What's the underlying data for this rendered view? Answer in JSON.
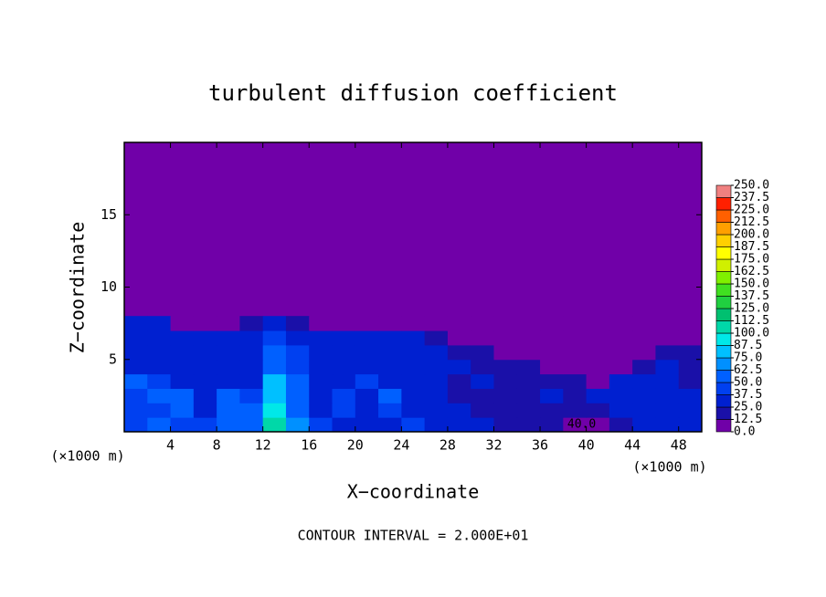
{
  "chart_data": {
    "type": "contour",
    "title": "turbulent diffusion coefficient",
    "xlabel": "X−coordinate",
    "ylabel": "Z−coordinate",
    "x_unit": "(×1000 m)",
    "footer": "CONTOUR INTERVAL = 2.000E+01",
    "xlim": [
      0,
      50
    ],
    "ylim": [
      0,
      20
    ],
    "xticks": [
      4,
      8,
      12,
      16,
      20,
      24,
      28,
      32,
      36,
      40,
      44,
      48
    ],
    "yticks": [
      5,
      10,
      15
    ],
    "annotations": [
      {
        "text": "40.0",
        "x": 39.6,
        "y": 0.5
      }
    ],
    "x": [
      1,
      3,
      5,
      7,
      9,
      11,
      13,
      15,
      17,
      19,
      21,
      23,
      25,
      27,
      29,
      31,
      33,
      35,
      37,
      39,
      41,
      43,
      45,
      47,
      49
    ],
    "y": [
      0.5,
      1.5,
      2.5,
      3.5,
      4.5,
      5.5,
      6.5,
      7.5
    ],
    "z": [
      [
        45,
        50,
        45,
        40,
        50,
        60,
        110,
        70,
        40,
        35,
        30,
        35,
        40,
        30,
        25,
        25,
        20,
        15,
        15,
        12,
        12,
        20,
        25,
        30,
        30
      ],
      [
        40,
        45,
        55,
        35,
        55,
        60,
        95,
        60,
        35,
        40,
        30,
        45,
        35,
        30,
        25,
        20,
        20,
        15,
        20,
        15,
        20,
        25,
        30,
        30,
        30
      ],
      [
        45,
        55,
        50,
        30,
        50,
        45,
        85,
        55,
        30,
        45,
        35,
        50,
        30,
        30,
        20,
        20,
        15,
        20,
        25,
        20,
        25,
        30,
        30,
        25,
        25
      ],
      [
        50,
        40,
        35,
        35,
        30,
        30,
        75,
        50,
        35,
        35,
        40,
        35,
        30,
        25,
        20,
        25,
        15,
        20,
        20,
        15,
        10,
        25,
        30,
        25,
        20
      ],
      [
        35,
        30,
        30,
        35,
        30,
        30,
        60,
        45,
        35,
        30,
        35,
        30,
        25,
        30,
        25,
        20,
        15,
        15,
        10,
        5,
        5,
        5,
        20,
        25,
        15
      ],
      [
        30,
        30,
        35,
        30,
        30,
        35,
        55,
        40,
        30,
        30,
        30,
        25,
        30,
        25,
        20,
        15,
        10,
        5,
        3,
        0,
        0,
        0,
        5,
        15,
        15
      ],
      [
        30,
        30,
        30,
        25,
        30,
        30,
        45,
        35,
        35,
        30,
        25,
        30,
        30,
        20,
        10,
        5,
        3,
        0,
        0,
        0,
        0,
        0,
        0,
        5,
        10
      ],
      [
        25,
        25,
        10,
        5,
        10,
        15,
        35,
        20,
        10,
        5,
        5,
        5,
        5,
        5,
        0,
        0,
        0,
        0,
        0,
        0,
        0,
        0,
        0,
        0,
        0
      ]
    ],
    "colorbar": {
      "levels": [
        {
          "value": 0,
          "label": "0.0"
        },
        12.5,
        {
          "value": 25,
          "label": "25.0"
        },
        37.5,
        {
          "value": 50,
          "label": "50.0"
        },
        62.5,
        {
          "value": 75,
          "label": "75.0"
        },
        87.5,
        {
          "value": 100,
          "label": "100.0"
        },
        112.5,
        {
          "value": 125,
          "label": "125.0"
        },
        137.5,
        {
          "value": 150,
          "label": "150.0"
        },
        162.5,
        {
          "value": 175,
          "label": "175.0"
        },
        187.5,
        {
          "value": 200,
          "label": "200.0"
        },
        212.5,
        {
          "value": 225,
          "label": "225.0"
        },
        237.5,
        {
          "value": 250,
          "label": "250.0"
        }
      ],
      "colors": [
        "#7000a8",
        "#1a10a8",
        "#0020d0",
        "#0040f0",
        "#0060ff",
        "#0090ff",
        "#00c0ff",
        "#00e8e8",
        "#00d8a8",
        "#00c070",
        "#20d040",
        "#40e020",
        "#80f000",
        "#d0f000",
        "#ffff00",
        "#ffd000",
        "#ffa000",
        "#ff6000",
        "#ff2000",
        "#f08080"
      ]
    }
  }
}
